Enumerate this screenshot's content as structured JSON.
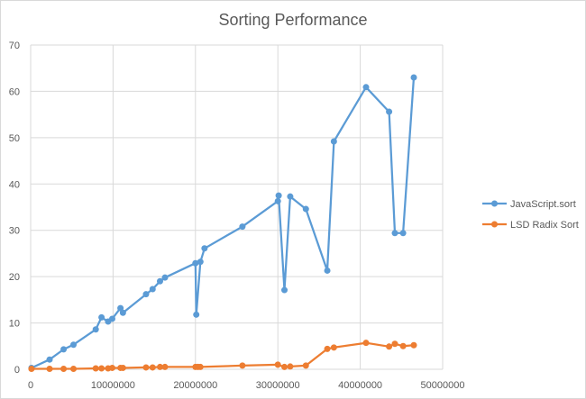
{
  "chart_data": {
    "type": "line",
    "title": "Sorting Performance",
    "xlabel": "",
    "ylabel": "",
    "xlim": [
      0,
      50000000
    ],
    "ylim": [
      0,
      70
    ],
    "x_ticks": [
      "0",
      "10000000",
      "20000000",
      "30000000",
      "40000000",
      "50000000"
    ],
    "y_ticks": [
      "0",
      "10",
      "20",
      "30",
      "40",
      "50",
      "60",
      "70"
    ],
    "grid": true,
    "legend_position": "right",
    "series": [
      {
        "name": "JavaScript.sort",
        "color": "#5b9bd5",
        "x": [
          100000,
          2300000,
          4000000,
          5200000,
          7900000,
          8600000,
          9400000,
          9900000,
          10900000,
          11200000,
          14000000,
          14800000,
          15700000,
          16300000,
          20000000,
          20100000,
          20600000,
          21100000,
          25700000,
          30000000,
          30100000,
          30800000,
          31500000,
          33400000,
          36000000,
          36800000,
          40700000,
          43500000,
          44200000,
          45200000,
          46500000
        ],
        "values": [
          0.3,
          2.1,
          4.3,
          5.3,
          8.6,
          11.2,
          10.3,
          10.9,
          13.2,
          12.2,
          16.2,
          17.3,
          19.0,
          19.8,
          22.9,
          11.8,
          23.2,
          26.1,
          30.8,
          36.3,
          37.5,
          17.1,
          37.3,
          34.6,
          21.3,
          49.2,
          60.9,
          55.6,
          29.4,
          29.4,
          63.0
        ]
      },
      {
        "name": "LSD Radix Sort",
        "color": "#ed7d31",
        "x": [
          100000,
          2300000,
          4000000,
          5200000,
          7900000,
          8600000,
          9400000,
          9900000,
          10900000,
          11200000,
          14000000,
          14800000,
          15700000,
          16300000,
          20000000,
          20300000,
          20600000,
          25700000,
          30000000,
          30800000,
          31500000,
          33400000,
          36000000,
          36800000,
          40700000,
          43500000,
          44200000,
          45200000,
          46500000
        ],
        "values": [
          0.1,
          0.1,
          0.1,
          0.1,
          0.2,
          0.2,
          0.2,
          0.3,
          0.3,
          0.3,
          0.4,
          0.4,
          0.5,
          0.5,
          0.5,
          0.5,
          0.5,
          0.8,
          1.0,
          0.5,
          0.6,
          0.8,
          4.4,
          4.7,
          5.7,
          4.9,
          5.5,
          5.0,
          5.2
        ]
      }
    ]
  },
  "legend": {
    "items": [
      {
        "label": "JavaScript.sort",
        "color": "#5b9bd5"
      },
      {
        "label": "LSD Radix Sort",
        "color": "#ed7d31"
      }
    ]
  }
}
